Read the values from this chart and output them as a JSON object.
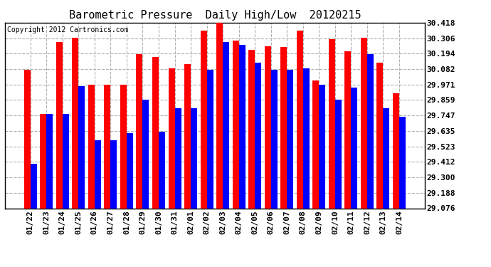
{
  "title": "Barometric Pressure  Daily High/Low  20120215",
  "copyright": "Copyright 2012 Cartronics.com",
  "categories": [
    "01/22",
    "01/23",
    "01/24",
    "01/25",
    "01/26",
    "01/27",
    "01/28",
    "01/29",
    "01/30",
    "01/31",
    "02/01",
    "02/02",
    "02/03",
    "02/04",
    "02/05",
    "02/06",
    "02/07",
    "02/08",
    "02/09",
    "02/10",
    "02/11",
    "02/12",
    "02/13",
    "02/14"
  ],
  "highs": [
    30.08,
    29.76,
    30.28,
    30.31,
    29.97,
    29.97,
    29.97,
    30.19,
    30.17,
    30.09,
    30.12,
    30.36,
    30.42,
    30.29,
    30.22,
    30.25,
    30.24,
    30.36,
    30.0,
    30.3,
    30.21,
    30.31,
    30.13,
    29.91
  ],
  "lows": [
    29.4,
    29.76,
    29.76,
    29.96,
    29.57,
    29.57,
    29.62,
    29.86,
    29.63,
    29.8,
    29.8,
    30.08,
    30.28,
    30.26,
    30.13,
    30.08,
    30.08,
    30.09,
    29.97,
    29.86,
    29.95,
    30.19,
    29.8,
    29.74
  ],
  "ylim_min": 29.076,
  "ylim_max": 30.418,
  "yticks": [
    29.076,
    29.188,
    29.3,
    29.412,
    29.523,
    29.635,
    29.747,
    29.859,
    29.971,
    30.082,
    30.194,
    30.306,
    30.418
  ],
  "bar_color_high": "#ff0000",
  "bar_color_low": "#0000ff",
  "bg_color": "#ffffff",
  "plot_bg_color": "#ffffff",
  "grid_color": "#b0b0b0",
  "title_fontsize": 11,
  "tick_fontsize": 8,
  "copyright_fontsize": 7
}
